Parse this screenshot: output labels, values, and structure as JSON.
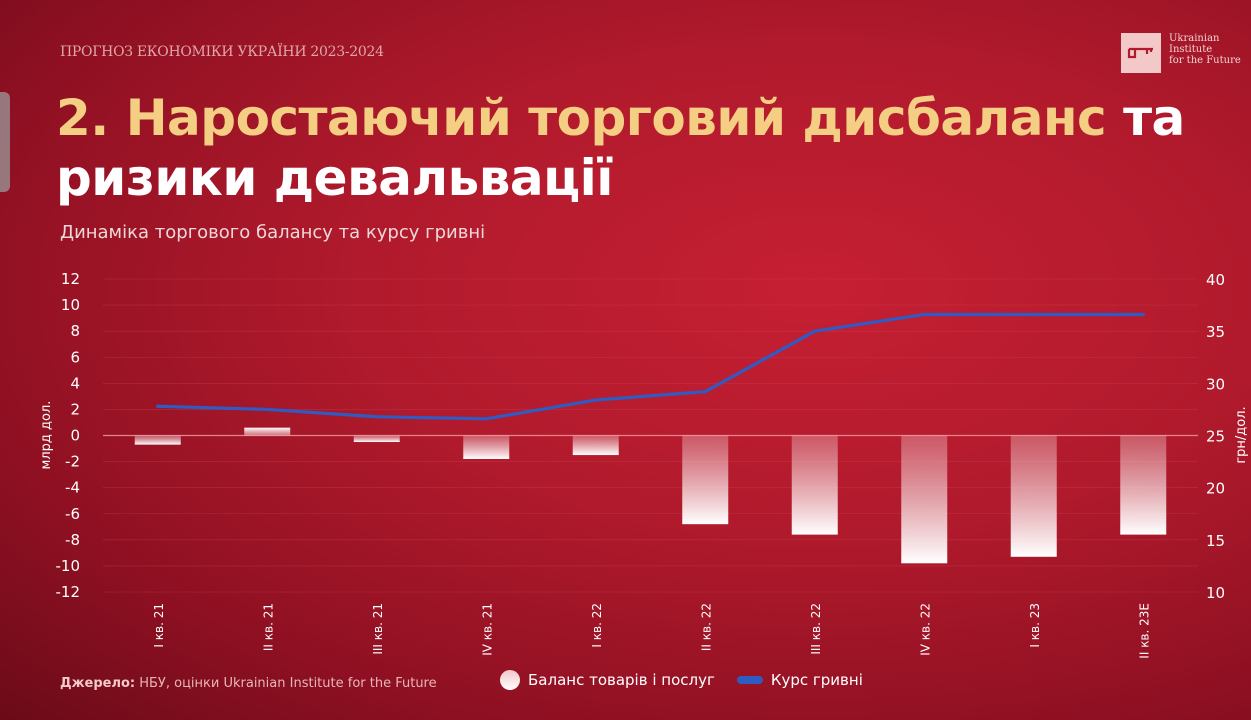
{
  "header": {
    "kicker": "ПРОГНОЗ ЕКОНОМІКИ УКРАЇНИ 2023-2024",
    "title_highlight": "2. Наростаючий торговий дисбаланс",
    "title_rest": "та ризики девальвації",
    "subtitle": "Динаміка торгового балансу та курсу гривні"
  },
  "logo": {
    "line1": "Ukrainian",
    "line2": "Institute",
    "line3": "for the Future"
  },
  "footer": {
    "source_label": "Джерело:",
    "source_text": " НБУ, оцінки Ukrainian Institute for the Future"
  },
  "colors": {
    "background": "#b01a2c",
    "title_accent": "#f4cf83",
    "line": "#2f5bc2",
    "bar_top": "#f3c7cb",
    "bar_bottom": "#ffffff"
  },
  "chart_data": {
    "type": "bar",
    "categories": [
      "I кв. 21",
      "II кв. 21",
      "III кв. 21",
      "IV кв. 21",
      "I кв. 22",
      "II кв. 22",
      "III кв. 22",
      "IV кв. 22",
      "I кв. 23",
      "II кв. 23Е"
    ],
    "series": [
      {
        "name": "Баланс товарів і послуг",
        "type": "bar",
        "axis": "left",
        "values": [
          -0.7,
          0.6,
          -0.5,
          -1.8,
          -1.5,
          -6.8,
          -7.6,
          -9.8,
          -9.3,
          -7.6
        ]
      },
      {
        "name": "Курс гривні",
        "type": "line",
        "axis": "right",
        "values": [
          27.8,
          27.5,
          26.8,
          26.6,
          28.4,
          29.2,
          35.0,
          36.6,
          36.6,
          36.6
        ]
      }
    ],
    "ylabel": "млрд дол.",
    "y2label": "грн/дол.",
    "ylim": [
      -12,
      12
    ],
    "y2lim": [
      10,
      40
    ],
    "yticks": [
      "12",
      "10",
      "8",
      "6",
      "4",
      "2",
      "0",
      "-2",
      "-4",
      "-6",
      "-8",
      "-10",
      "-12"
    ],
    "y2ticks": [
      "40",
      "35",
      "30",
      "25",
      "20",
      "15",
      "10"
    ],
    "grid": true,
    "legend_position": "bottom"
  }
}
